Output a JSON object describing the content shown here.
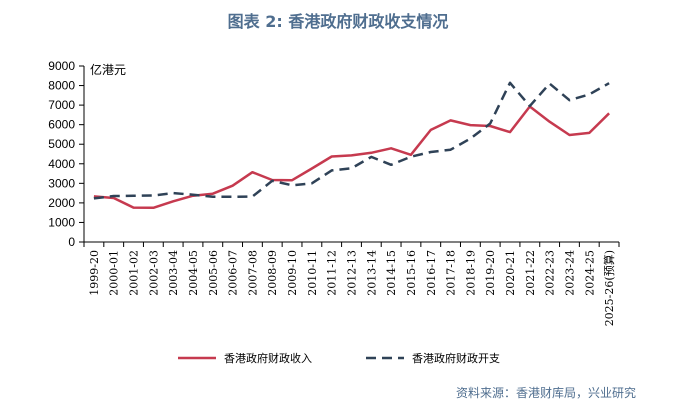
{
  "colors": {
    "title": "#4f6e8f",
    "axis": "#000000",
    "revenue": "#c63a4f",
    "expenditure": "#2f4257",
    "source": "#4f6e8f"
  },
  "title": "图表 2:  香港政府财政收支情况",
  "source": "资料来源：香港财库局，兴业研究",
  "chart_data": {
    "type": "line",
    "ylabel": "亿港元",
    "xlabel": "",
    "ylim": [
      0,
      9000
    ],
    "yticks": [
      0,
      1000,
      2000,
      3000,
      4000,
      5000,
      6000,
      7000,
      8000,
      9000
    ],
    "grid": false,
    "legend_position": "bottom",
    "categories": [
      "1999-20",
      "2000-01",
      "2001-02",
      "2002-03",
      "2003-04",
      "2004-05",
      "2005-06",
      "2006-07",
      "2007-08",
      "2008-09",
      "2009-10",
      "2010-11",
      "2011-12",
      "2012-13",
      "2013-14",
      "2014-15",
      "2015-16",
      "2016-17",
      "2017-18",
      "2018-19",
      "2019-20",
      "2020-21",
      "2021-22",
      "2022-23",
      "2023-24",
      "2024-25",
      "2025-26(预算)"
    ],
    "series": [
      {
        "name": "香港政府财政收入",
        "style": "solid",
        "values": [
          2330,
          2250,
          1760,
          1750,
          2080,
          2370,
          2470,
          2880,
          3570,
          3170,
          3160,
          3760,
          4370,
          4430,
          4560,
          4790,
          4460,
          5730,
          6220,
          5980,
          5930,
          5620,
          6930,
          6150,
          5470,
          5580,
          6580
        ]
      },
      {
        "name": "香港政府财政开支",
        "style": "dashed",
        "values": [
          2230,
          2350,
          2360,
          2380,
          2500,
          2420,
          2310,
          2310,
          2320,
          3130,
          2900,
          3000,
          3660,
          3770,
          4350,
          3950,
          4360,
          4600,
          4720,
          5290,
          6060,
          8140,
          6950,
          8100,
          7250,
          7550,
          8120
        ]
      }
    ]
  }
}
